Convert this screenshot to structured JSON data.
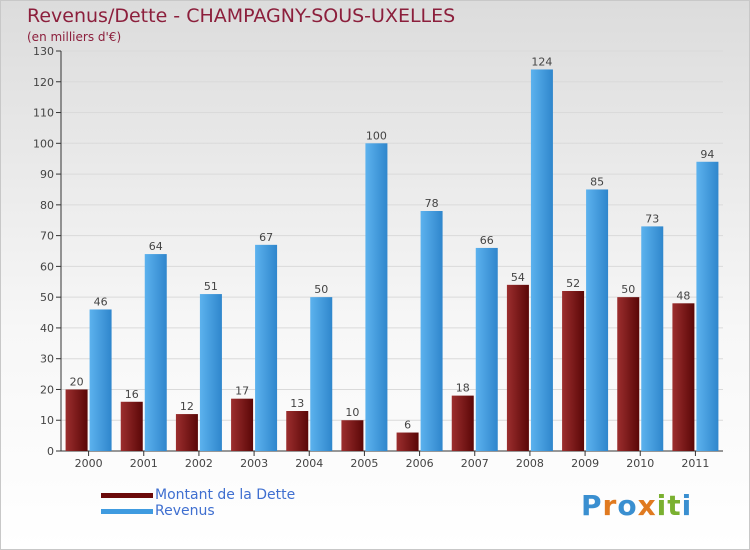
{
  "chart_data": {
    "type": "bar",
    "title": "Revenus/Dette - CHAMPAGNY-SOUS-UXELLES",
    "subtitle": "(en milliers d'€)",
    "categories": [
      "2000",
      "2001",
      "2002",
      "2003",
      "2004",
      "2005",
      "2006",
      "2007",
      "2008",
      "2009",
      "2010",
      "2011"
    ],
    "series": [
      {
        "name": "Montant de la Dette",
        "color": "#8b2020",
        "values": [
          20,
          16,
          12,
          17,
          13,
          10,
          6,
          18,
          54,
          52,
          50,
          48
        ]
      },
      {
        "name": "Revenus",
        "color": "#4aa3e6",
        "values": [
          46,
          64,
          51,
          67,
          50,
          100,
          78,
          66,
          124,
          85,
          73,
          94
        ]
      }
    ],
    "ylim": [
      0,
      130
    ],
    "yticks": [
      0,
      10,
      20,
      30,
      40,
      50,
      60,
      70,
      80,
      90,
      100,
      110,
      120,
      130
    ],
    "grid": true,
    "legend": "bottom-left"
  },
  "legend": {
    "debt_label": "Montant de la Dette",
    "revenue_label": "Revenus"
  },
  "logo": {
    "text": "Proxiti",
    "letter_colors": [
      "#3a8fd0",
      "#e07a20",
      "#3a8fd0",
      "#e07a20",
      "#7ab030",
      "#7ab030",
      "#3a8fd0"
    ]
  }
}
